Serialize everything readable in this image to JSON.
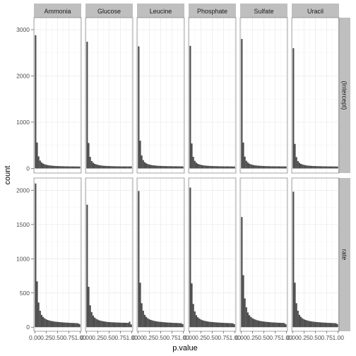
{
  "chart_data": {
    "type": "bar",
    "xlabel": "p.value",
    "ylabel": "count",
    "col_facets": [
      "Ammonia",
      "Glucose",
      "Leucine",
      "Phosphate",
      "Sulfate",
      "Uracil"
    ],
    "row_facets": [
      "(Intercept)",
      "rate"
    ],
    "x_ticks": [
      "0.00",
      "0.25",
      "0.50",
      "0.75",
      "1.00"
    ],
    "xlim": [
      -0.02,
      1.02
    ],
    "bins": 30,
    "rows": [
      {
        "facet": "(Intercept)",
        "ylim": [
          -100,
          3260
        ],
        "y_ticks": [
          0,
          1000,
          2000,
          3000
        ],
        "panels": [
          {
            "facet": "Ammonia",
            "values": [
              2880,
              560,
              260,
              170,
              130,
              105,
              90,
              80,
              72,
              66,
              62,
              58,
              56,
              54,
              52,
              50,
              50,
              48,
              47,
              46,
              46,
              45,
              44,
              44,
              43,
              43,
              43,
              43,
              42,
              40
            ]
          },
          {
            "facet": "Glucose",
            "values": [
              2740,
              550,
              250,
              160,
              125,
              100,
              88,
              78,
              70,
              65,
              60,
              57,
              55,
              53,
              52,
              50,
              49,
              48,
              47,
              46,
              46,
              45,
              45,
              44,
              44,
              44,
              44,
              43,
              43,
              45
            ]
          },
          {
            "facet": "Leucine",
            "values": [
              2640,
              600,
              280,
              180,
              135,
              110,
              95,
              84,
              76,
              70,
              66,
              62,
              59,
              57,
              55,
              53,
              52,
              51,
              50,
              49,
              49,
              48,
              48,
              47,
              47,
              46,
              46,
              46,
              45,
              44
            ]
          },
          {
            "facet": "Phosphate",
            "values": [
              2650,
              540,
              250,
              165,
              125,
              100,
              88,
              78,
              70,
              65,
              61,
              58,
              56,
              54,
              52,
              51,
              50,
              49,
              48,
              47,
              47,
              46,
              46,
              45,
              45,
              44,
              44,
              44,
              43,
              42
            ]
          },
          {
            "facet": "Sulfate",
            "values": [
              2800,
              560,
              255,
              165,
              128,
              102,
              89,
              79,
              71,
              66,
              62,
              59,
              57,
              55,
              53,
              51,
              50,
              49,
              48,
              47,
              47,
              46,
              46,
              45,
              45,
              45,
              44,
              44,
              44,
              43
            ]
          },
          {
            "facet": "Uracil",
            "values": [
              2600,
              530,
              245,
              160,
              122,
              98,
              86,
              76,
              69,
              64,
              60,
              57,
              55,
              53,
              51,
              50,
              49,
              48,
              47,
              46,
              46,
              45,
              45,
              44,
              44,
              43,
              43,
              43,
              42,
              42
            ]
          }
        ]
      },
      {
        "facet": "rate",
        "ylim": [
          -60,
          2180
        ],
        "y_ticks": [
          0,
          500,
          1000,
          1500,
          2000
        ],
        "panels": [
          {
            "facet": "Ammonia",
            "values": [
              2100,
              670,
              360,
              240,
              180,
              150,
              130,
              115,
              105,
              98,
              92,
              88,
              84,
              80,
              78,
              76,
              74,
              72,
              70,
              68,
              67,
              66,
              64,
              63,
              62,
              61,
              60,
              58,
              57,
              45
            ]
          },
          {
            "facet": "Glucose",
            "values": [
              1790,
              590,
              320,
              220,
              170,
              140,
              122,
              110,
              100,
              94,
              89,
              85,
              81,
              78,
              76,
              74,
              72,
              71,
              70,
              69,
              68,
              67,
              66,
              65,
              65,
              64,
              64,
              63,
              80,
              40
            ]
          },
          {
            "facet": "Leucine",
            "values": [
              1990,
              650,
              350,
              240,
              180,
              150,
              130,
              116,
              106,
              99,
              93,
              88,
              84,
              81,
              78,
              76,
              74,
              72,
              70,
              68,
              67,
              66,
              64,
              63,
              62,
              61,
              60,
              59,
              58,
              45
            ]
          },
          {
            "facet": "Phosphate",
            "values": [
              2040,
              640,
              340,
              230,
              175,
              145,
              126,
              112,
              102,
              95,
              90,
              85,
              81,
              78,
              76,
              74,
              72,
              70,
              68,
              67,
              66,
              64,
              63,
              62,
              61,
              60,
              59,
              58,
              57,
              44
            ]
          },
          {
            "facet": "Sulfate",
            "values": [
              1610,
              760,
              420,
              290,
              215,
              175,
              150,
              132,
              120,
              110,
              102,
              96,
              91,
              87,
              84,
              81,
              78,
              76,
              74,
              72,
              70,
              69,
              68,
              66,
              65,
              64,
              63,
              62,
              60,
              42
            ]
          },
          {
            "facet": "Uracil",
            "values": [
              1980,
              650,
              350,
              240,
              180,
              150,
              130,
              116,
              106,
              99,
              93,
              88,
              84,
              81,
              78,
              76,
              74,
              72,
              70,
              68,
              67,
              66,
              64,
              63,
              62,
              61,
              60,
              59,
              58,
              45
            ]
          }
        ]
      }
    ],
    "colors": {
      "bar": "#4d4d4d",
      "strip": "#bfbfbf",
      "grid": "#ebebeb",
      "panel_border": "#7f7f7f"
    },
    "grid": true
  }
}
